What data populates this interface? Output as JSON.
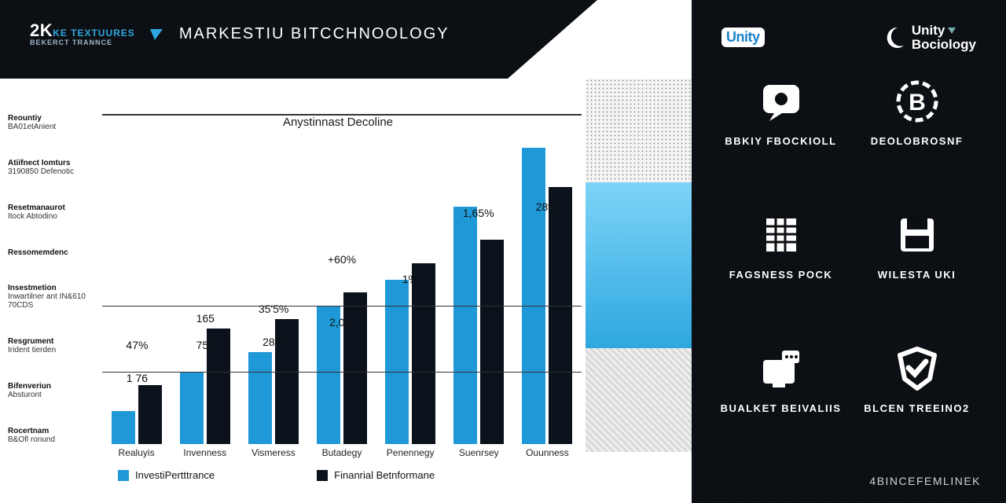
{
  "colors": {
    "header_bg": "#0c0f13",
    "accent": "#2ea7e0",
    "series_a": "#1f98d7",
    "series_b": "#0b121c",
    "sidebar_bg": "#0b0e12",
    "sky_top": "#7ed4f7",
    "sky_bot": "#2ea7e0"
  },
  "header": {
    "logo_main": "2K",
    "logo_after": "KE TEXTUURES",
    "logo_sub": "BEKERCT TRANNCE",
    "title": "MARKESTIU BITCCHNOOLOGY"
  },
  "chart": {
    "type": "grouped-bar",
    "title": "Anystinnast Decoline",
    "categories": [
      "Realuyis",
      "Invenness",
      "Vismeress",
      "Butadegy",
      "Penennegy",
      "Suenrsey",
      "Ouunness"
    ],
    "series": [
      {
        "name": "InvestiPertttrance",
        "color_key": "series_a",
        "values": [
          10,
          22,
          28,
          42,
          50,
          72,
          90
        ]
      },
      {
        "name": "Finanrial Betnformane",
        "color_key": "series_b",
        "values": [
          18,
          35,
          38,
          46,
          55,
          62,
          78
        ]
      }
    ],
    "ylim": [
      0,
      100
    ],
    "hlines": [
      22,
      42,
      100
    ],
    "value_labels": [
      {
        "cat": 0,
        "text": "1 76",
        "top_pct": 78
      },
      {
        "cat": 0,
        "text": "47%",
        "top_pct": 68
      },
      {
        "cat": 1,
        "text": "165",
        "top_pct": 60
      },
      {
        "cat": 1,
        "text": "753",
        "top_pct": 68
      },
      {
        "cat": 2,
        "text": "35'5%",
        "top_pct": 57
      },
      {
        "cat": 2,
        "text": "28%",
        "top_pct": 67
      },
      {
        "cat": 3,
        "text": "+60%",
        "top_pct": 42
      },
      {
        "cat": 3,
        "text": "2,0%",
        "top_pct": 61
      },
      {
        "cat": 4,
        "text": "1%",
        "top_pct": 48
      },
      {
        "cat": 5,
        "text": "1,65%",
        "top_pct": 28
      },
      {
        "cat": 6,
        "text": "28%",
        "top_pct": 26
      }
    ],
    "y_labels": [
      {
        "l1": "Reountiy",
        "l2": "BA01etAnient"
      },
      {
        "l1": "Atiifnect Iomturs",
        "l2": "3190850 Defenotic"
      },
      {
        "l1": "Resetmanaurot",
        "l2": "Itock Abtodino"
      },
      {
        "l1": "Ressomemdenc",
        "l2": ""
      },
      {
        "l1": "Insestmetion",
        "l2": "Inwartilner ant IN&610 70CDS"
      },
      {
        "l1": "Resgrument",
        "l2": "Irident tierden"
      },
      {
        "l1": "Bifenveriun",
        "l2": "Absturont"
      },
      {
        "l1": "Rocertnam",
        "l2": "B&Ofl ronund"
      }
    ]
  },
  "sidebar": {
    "top_left": "Unity",
    "top_right_1": "Unity",
    "top_right_2": "Bociology",
    "cells": [
      {
        "label": "BBKIY FBOCKIOLL",
        "icon": "chat-bubble-icon"
      },
      {
        "label": "DEOLOBROSNF",
        "icon": "coin-b-icon"
      },
      {
        "label": "FAGSNESS POCK",
        "icon": "grid-icon"
      },
      {
        "label": "WILESTA UKI",
        "icon": "save-disk-icon"
      },
      {
        "label": "BUALKET BEIVALIIS",
        "icon": "screen-msg-icon"
      },
      {
        "label": "BLCEN TREEINO2",
        "icon": "check-shield-icon"
      }
    ],
    "footer": "4BINCEFEMLINEK"
  }
}
